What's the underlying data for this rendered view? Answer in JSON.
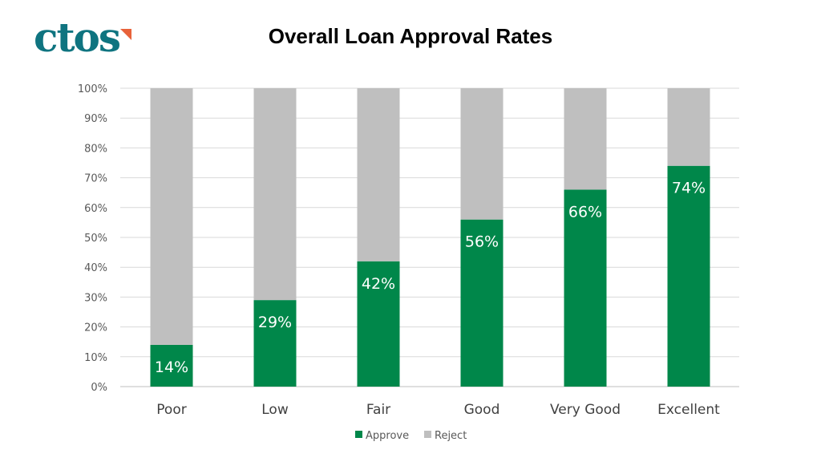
{
  "logo": {
    "text": "ctos",
    "colors": {
      "main": "#0f7480",
      "accent": "#e8623a"
    }
  },
  "chart_data": {
    "type": "bar",
    "stacked": true,
    "title": "Overall Loan Approval Rates",
    "categories": [
      "Poor",
      "Low",
      "Fair",
      "Good",
      "Very Good",
      "Excellent"
    ],
    "series": [
      {
        "name": "Approve",
        "values": [
          14,
          29,
          42,
          56,
          66,
          74
        ],
        "color": "#00874a"
      },
      {
        "name": "Reject",
        "values": [
          86,
          71,
          58,
          44,
          34,
          26
        ],
        "color": "#bfbfbf"
      }
    ],
    "data_labels": [
      "14%",
      "29%",
      "42%",
      "56%",
      "66%",
      "74%"
    ],
    "yticks": [
      "0%",
      "10%",
      "20%",
      "30%",
      "40%",
      "50%",
      "60%",
      "70%",
      "80%",
      "90%",
      "100%"
    ],
    "ylim": [
      0,
      100
    ],
    "xlabel": "",
    "ylabel": "",
    "grid": true,
    "legend": "bottom"
  }
}
